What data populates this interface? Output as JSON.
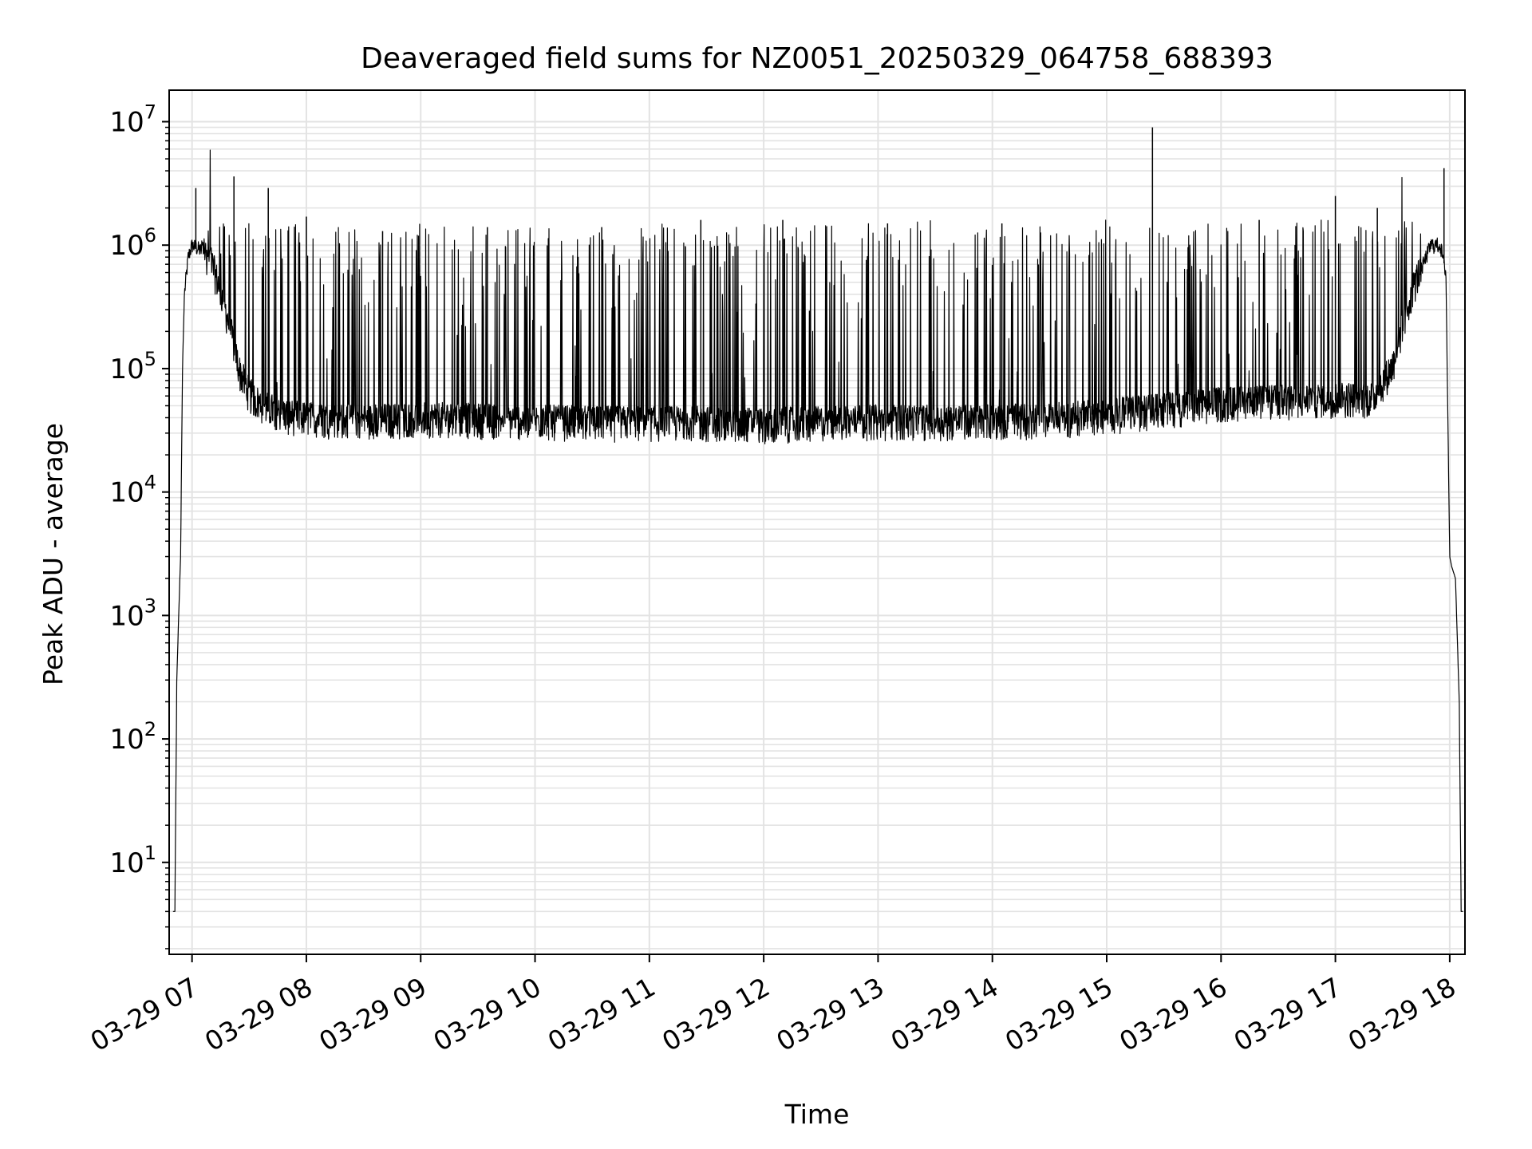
{
  "chart_data": {
    "type": "line",
    "title": "Deaveraged field sums for NZ0051_20250329_064758_688393",
    "xlabel": "Time",
    "ylabel": "Peak ADU - average",
    "y_scale": "log",
    "ylim": [
      1.8,
      18000000
    ],
    "xlim": [
      "2025-03-29T06:48",
      "2025-03-29T18:08"
    ],
    "grid": "major and minor",
    "line_color": "#000000",
    "grid_color": "#e3e3e3",
    "x_ticks": [
      {
        "value": "2025-03-29T07:00",
        "label": "03-29 07"
      },
      {
        "value": "2025-03-29T08:00",
        "label": "03-29 08"
      },
      {
        "value": "2025-03-29T09:00",
        "label": "03-29 09"
      },
      {
        "value": "2025-03-29T10:00",
        "label": "03-29 10"
      },
      {
        "value": "2025-03-29T11:00",
        "label": "03-29 11"
      },
      {
        "value": "2025-03-29T12:00",
        "label": "03-29 12"
      },
      {
        "value": "2025-03-29T13:00",
        "label": "03-29 13"
      },
      {
        "value": "2025-03-29T14:00",
        "label": "03-29 14"
      },
      {
        "value": "2025-03-29T15:00",
        "label": "03-29 15"
      },
      {
        "value": "2025-03-29T16:00",
        "label": "03-29 16"
      },
      {
        "value": "2025-03-29T17:00",
        "label": "03-29 17"
      },
      {
        "value": "2025-03-29T18:00",
        "label": "03-29 18"
      }
    ],
    "y_ticks": [
      {
        "value": 10,
        "label_base": "10",
        "label_exp": "1"
      },
      {
        "value": 100,
        "label_base": "10",
        "label_exp": "2"
      },
      {
        "value": 1000,
        "label_base": "10",
        "label_exp": "3"
      },
      {
        "value": 10000,
        "label_base": "10",
        "label_exp": "4"
      },
      {
        "value": 100000,
        "label_base": "10",
        "label_exp": "5"
      },
      {
        "value": 1000000,
        "label_base": "10",
        "label_exp": "6"
      },
      {
        "value": 10000000,
        "label_base": "10",
        "label_exp": "7"
      }
    ],
    "series": [
      {
        "x": [
          "2025-03-29T06:50",
          "2025-03-29T06:51",
          "2025-03-29T06:52",
          "2025-03-29T06:53",
          "2025-03-29T06:54",
          "2025-03-29T06:55",
          "2025-03-29T06:56",
          "2025-03-29T06:58",
          "2025-03-29T07:00",
          "2025-03-29T07:05",
          "2025-03-29T07:10",
          "2025-03-29T07:15",
          "2025-03-29T07:20",
          "2025-03-29T07:25",
          "2025-03-29T07:30",
          "2025-03-29T07:35",
          "2025-03-29T07:40",
          "2025-03-29T07:50",
          "2025-03-29T08:00",
          "2025-03-29T08:30",
          "2025-03-29T09:00",
          "2025-03-29T09:30",
          "2025-03-29T10:00",
          "2025-03-29T10:30",
          "2025-03-29T11:00",
          "2025-03-29T11:30",
          "2025-03-29T12:00",
          "2025-03-29T12:30",
          "2025-03-29T13:00",
          "2025-03-29T13:30",
          "2025-03-29T14:00",
          "2025-03-29T14:30",
          "2025-03-29T15:00",
          "2025-03-29T15:30",
          "2025-03-29T16:00",
          "2025-03-29T16:30",
          "2025-03-29T17:00",
          "2025-03-29T17:20",
          "2025-03-29T17:30",
          "2025-03-29T17:40",
          "2025-03-29T17:50",
          "2025-03-29T17:55",
          "2025-03-29T17:58",
          "2025-03-29T18:00",
          "2025-03-29T18:01",
          "2025-03-29T18:03",
          "2025-03-29T18:05",
          "2025-03-29T18:06",
          "2025-03-29T18:07"
        ],
        "y": [
          4,
          4,
          300,
          1000,
          3000,
          100000,
          400000,
          800000,
          1000000,
          900000,
          700000,
          400000,
          200000,
          90000,
          60000,
          50000,
          45000,
          40000,
          38000,
          36000,
          38000,
          37000,
          36000,
          35000,
          35000,
          35000,
          34000,
          35000,
          36000,
          36000,
          36000,
          37000,
          40000,
          45000,
          50000,
          52000,
          55000,
          55000,
          100000,
          400000,
          1000000,
          1000000,
          600000,
          3000,
          2500,
          2000,
          200,
          4,
          4
        ]
      }
    ],
    "spikes": [
      {
        "x": "2025-03-29T07:02",
        "y": 2900000
      },
      {
        "x": "2025-03-29T07:22",
        "y": 3600000
      },
      {
        "x": "2025-03-29T07:40",
        "y": 2900000
      },
      {
        "x": "2025-03-29T08:00",
        "y": 1700000
      },
      {
        "x": "2025-03-29T08:40",
        "y": 1300000
      },
      {
        "x": "2025-03-29T09:35",
        "y": 1400000
      },
      {
        "x": "2025-03-29T10:35",
        "y": 1400000
      },
      {
        "x": "2025-03-29T11:27",
        "y": 1600000
      },
      {
        "x": "2025-03-29T12:10",
        "y": 1600000
      },
      {
        "x": "2025-03-29T13:05",
        "y": 1500000
      },
      {
        "x": "2025-03-29T14:05",
        "y": 1500000
      },
      {
        "x": "2025-03-29T15:24",
        "y": 9000000
      },
      {
        "x": "2025-03-29T16:20",
        "y": 1600000
      },
      {
        "x": "2025-03-29T17:00",
        "y": 2500000
      },
      {
        "x": "2025-03-29T17:22",
        "y": 2000000
      },
      {
        "x": "2025-03-29T17:57",
        "y": 4200000
      }
    ]
  }
}
